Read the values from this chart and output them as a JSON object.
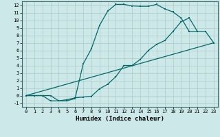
{
  "xlabel": "Humidex (Indice chaleur)",
  "bg_color": "#cde8e8",
  "grid_color": "#b0c8c8",
  "line_color": "#006868",
  "xlim": [
    -0.5,
    23.5
  ],
  "ylim": [
    -1.5,
    12.5
  ],
  "xticks": [
    0,
    1,
    2,
    3,
    4,
    5,
    6,
    7,
    8,
    9,
    10,
    11,
    12,
    13,
    14,
    15,
    16,
    17,
    18,
    19,
    20,
    21,
    22,
    23
  ],
  "yticks": [
    -1,
    0,
    1,
    2,
    3,
    4,
    5,
    6,
    7,
    8,
    9,
    10,
    11,
    12
  ],
  "line1_x": [
    0,
    1,
    2,
    3,
    4,
    5,
    6,
    7,
    8,
    9,
    10,
    11,
    12,
    13,
    14,
    15,
    16,
    17,
    18,
    19,
    20,
    21
  ],
  "line1_y": [
    0,
    0,
    0,
    0,
    -0.7,
    -0.7,
    -0.4,
    4.2,
    6.2,
    9.3,
    11.2,
    12.1,
    12.1,
    11.9,
    11.85,
    11.85,
    12.1,
    11.5,
    11.1,
    10.3,
    8.5,
    8.5
  ],
  "line2_x": [
    0,
    1,
    2,
    3,
    4,
    5,
    6,
    7,
    8,
    9,
    10,
    11,
    12,
    13,
    14,
    15,
    16,
    17,
    18,
    19,
    20,
    21,
    22,
    23
  ],
  "line2_y": [
    0,
    0,
    0,
    -0.7,
    -0.7,
    -0.55,
    -0.3,
    -0.2,
    -0.1,
    0.9,
    1.5,
    2.5,
    4.0,
    4.0,
    4.8,
    6.0,
    6.8,
    7.3,
    8.5,
    9.8,
    10.3,
    8.5,
    8.5,
    7.0
  ],
  "line3_x": [
    0,
    23
  ],
  "line3_y": [
    0,
    7.0
  ],
  "tick_fontsize": 5.0,
  "xlabel_fontsize": 6.5
}
